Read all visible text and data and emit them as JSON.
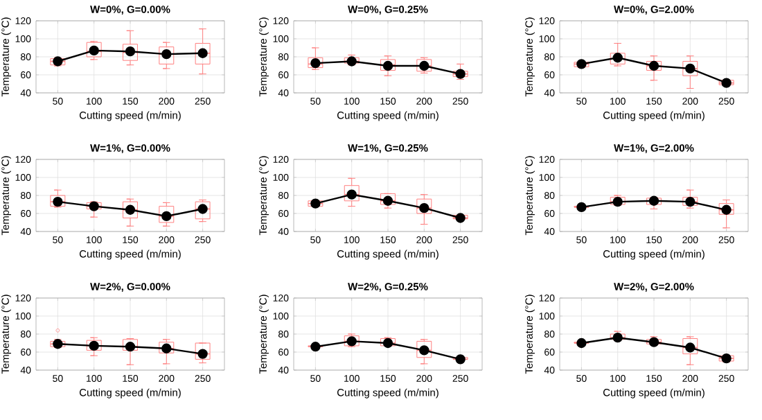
{
  "chart_data": [
    {
      "type": "box",
      "title": "W=0%, G=0.00%",
      "xlabel": "Cutting speed (m/min)",
      "ylabel": "Temperature (°C)",
      "categories": [
        "50",
        "100",
        "150",
        "200",
        "250"
      ],
      "ylim": [
        40,
        120
      ],
      "yticks": [
        40,
        60,
        80,
        100,
        120
      ],
      "grid": true,
      "series": [
        {
          "type": "box",
          "color": "#ff8080",
          "boxes": [
            {
              "low": 70,
              "q1": 71,
              "median": 75,
              "q3": 78,
              "high": 79
            },
            {
              "low": 77,
              "q1": 80,
              "median": 86,
              "q3": 96,
              "high": 97
            },
            {
              "low": 71,
              "q1": 76,
              "median": 85,
              "q3": 94,
              "high": 109
            },
            {
              "low": 67,
              "q1": 72,
              "median": 83,
              "q3": 91,
              "high": 96
            },
            {
              "low": 61,
              "q1": 72,
              "median": 84,
              "q3": 95,
              "high": 111
            }
          ]
        },
        {
          "type": "line",
          "color": "#000000",
          "marker": "circle",
          "values": [
            75,
            87,
            86,
            83,
            84
          ]
        }
      ]
    },
    {
      "type": "box",
      "title": "W=0%, G=0.25%",
      "xlabel": "Cutting speed (m/min)",
      "ylabel": "Temperature (°C)",
      "categories": [
        "50",
        "100",
        "150",
        "200",
        "250"
      ],
      "ylim": [
        40,
        120
      ],
      "yticks": [
        40,
        60,
        80,
        100,
        120
      ],
      "grid": true,
      "series": [
        {
          "type": "box",
          "color": "#ff8080",
          "boxes": [
            {
              "low": 66,
              "q1": 68,
              "median": 72,
              "q3": 79,
              "high": 90
            },
            {
              "low": 71,
              "q1": 73,
              "median": 75,
              "q3": 79,
              "high": 82
            },
            {
              "low": 59,
              "q1": 65,
              "median": 71,
              "q3": 77,
              "high": 81
            },
            {
              "low": 62,
              "q1": 64,
              "median": 70,
              "q3": 77,
              "high": 79
            },
            {
              "low": 55,
              "q1": 58,
              "median": 61,
              "q3": 64,
              "high": 72
            }
          ]
        },
        {
          "type": "line",
          "color": "#000000",
          "marker": "circle",
          "values": [
            73,
            75,
            70,
            70,
            61
          ]
        }
      ]
    },
    {
      "type": "box",
      "title": "W=0%, G=2.00%",
      "xlabel": "Cutting speed (m/min)",
      "ylabel": "Temperature (°C)",
      "categories": [
        "50",
        "100",
        "150",
        "200",
        "250"
      ],
      "ylim": [
        40,
        120
      ],
      "yticks": [
        40,
        60,
        80,
        100,
        120
      ],
      "grid": true,
      "series": [
        {
          "type": "box",
          "color": "#ff8080",
          "boxes": [
            {
              "low": 68,
              "q1": 69,
              "median": 72,
              "q3": 74,
              "high": 74
            },
            {
              "low": 70,
              "q1": 72,
              "median": 78,
              "q3": 84,
              "high": 95
            },
            {
              "low": 54,
              "q1": 65,
              "median": 70,
              "q3": 75,
              "high": 81
            },
            {
              "low": 45,
              "q1": 59,
              "median": 67,
              "q3": 75,
              "high": 81
            },
            {
              "low": 48,
              "q1": 49,
              "median": 51,
              "q3": 54,
              "high": 54
            }
          ]
        },
        {
          "type": "line",
          "color": "#000000",
          "marker": "circle",
          "values": [
            72,
            79,
            70,
            67,
            51
          ]
        }
      ]
    },
    {
      "type": "box",
      "title": "W=1%, G=0.00%",
      "xlabel": "Cutting speed (m/min)",
      "ylabel": "Temperature (°C)",
      "categories": [
        "50",
        "100",
        "150",
        "200",
        "250"
      ],
      "ylim": [
        40,
        120
      ],
      "yticks": [
        40,
        60,
        80,
        100,
        120
      ],
      "grid": true,
      "series": [
        {
          "type": "box",
          "color": "#ff8080",
          "boxes": [
            {
              "low": 67,
              "q1": 68,
              "median": 73,
              "q3": 80,
              "high": 86
            },
            {
              "low": 56,
              "q1": 65,
              "median": 68,
              "q3": 72,
              "high": 73
            },
            {
              "low": 46,
              "q1": 55,
              "median": 64,
              "q3": 73,
              "high": 76
            },
            {
              "low": 46,
              "q1": 50,
              "median": 57,
              "q3": 68,
              "high": 72
            },
            {
              "low": 51,
              "q1": 54,
              "median": 65,
              "q3": 73,
              "high": 75
            }
          ]
        },
        {
          "type": "line",
          "color": "#000000",
          "marker": "circle",
          "values": [
            73,
            68,
            64,
            57,
            65
          ]
        }
      ]
    },
    {
      "type": "box",
      "title": "W=1%, G=0.25%",
      "xlabel": "Cutting speed (m/min)",
      "ylabel": "Temperature (°C)",
      "categories": [
        "50",
        "100",
        "150",
        "200",
        "250"
      ],
      "ylim": [
        40,
        120
      ],
      "yticks": [
        40,
        60,
        80,
        100,
        120
      ],
      "grid": true,
      "series": [
        {
          "type": "box",
          "color": "#ff8080",
          "boxes": [
            {
              "low": 68,
              "q1": 68,
              "median": 71,
              "q3": 74,
              "high": 74
            },
            {
              "low": 68,
              "q1": 74,
              "median": 81,
              "q3": 91,
              "high": 99
            },
            {
              "low": 66,
              "q1": 70,
              "median": 74,
              "q3": 82,
              "high": 82
            },
            {
              "low": 48,
              "q1": 60,
              "median": 66,
              "q3": 76,
              "high": 81
            },
            {
              "low": 53,
              "q1": 54,
              "median": 55,
              "q3": 58,
              "high": 58
            }
          ]
        },
        {
          "type": "line",
          "color": "#000000",
          "marker": "circle",
          "values": [
            71,
            81,
            74,
            66,
            55
          ]
        }
      ]
    },
    {
      "type": "box",
      "title": "W=1%, G=2.00%",
      "xlabel": "Cutting speed (m/min)",
      "ylabel": "Temperature (°C)",
      "categories": [
        "50",
        "100",
        "150",
        "200",
        "250"
      ],
      "ylim": [
        40,
        120
      ],
      "yticks": [
        40,
        60,
        80,
        100,
        120
      ],
      "grid": true,
      "series": [
        {
          "type": "box",
          "color": "#ff8080",
          "boxes": [
            {
              "low": 66,
              "q1": 67,
              "median": 67,
              "q3": 68,
              "high": 68
            },
            {
              "low": 69,
              "q1": 70,
              "median": 73,
              "q3": 78,
              "high": 80
            },
            {
              "low": 65,
              "q1": 70,
              "median": 74,
              "q3": 77,
              "high": 78
            },
            {
              "low": 66,
              "q1": 69,
              "median": 73,
              "q3": 78,
              "high": 86
            },
            {
              "low": 44,
              "q1": 59,
              "median": 64,
              "q3": 71,
              "high": 75
            }
          ]
        },
        {
          "type": "line",
          "color": "#000000",
          "marker": "circle",
          "values": [
            67,
            73,
            74,
            73,
            64
          ]
        }
      ]
    },
    {
      "type": "box",
      "title": "W=2%, G=0.00%",
      "xlabel": "Cutting speed (m/min)",
      "ylabel": "Temperature (°C)",
      "categories": [
        "50",
        "100",
        "150",
        "200",
        "250"
      ],
      "ylim": [
        40,
        120
      ],
      "yticks": [
        40,
        60,
        80,
        100,
        120
      ],
      "grid": true,
      "series": [
        {
          "type": "box",
          "color": "#ff8080",
          "boxes": [
            {
              "low": 65,
              "q1": 66,
              "median": 69,
              "q3": 72,
              "high": 74,
              "outliers": [
                84
              ]
            },
            {
              "low": 56,
              "q1": 62,
              "median": 67,
              "q3": 73,
              "high": 76
            },
            {
              "low": 46,
              "q1": 62,
              "median": 66,
              "q3": 74,
              "high": 75
            },
            {
              "low": 47,
              "q1": 59,
              "median": 64,
              "q3": 71,
              "high": 74
            },
            {
              "low": 48,
              "q1": 52,
              "median": 58,
              "q3": 70,
              "high": 70
            }
          ]
        },
        {
          "type": "line",
          "color": "#000000",
          "marker": "circle",
          "values": [
            69,
            67,
            66,
            64,
            58
          ]
        }
      ]
    },
    {
      "type": "box",
      "title": "W=2%, G=0.25%",
      "xlabel": "Cutting speed (m/min)",
      "ylabel": "Temperature (°C)",
      "categories": [
        "50",
        "100",
        "150",
        "200",
        "250"
      ],
      "ylim": [
        40,
        120
      ],
      "yticks": [
        40,
        60,
        80,
        100,
        120
      ],
      "grid": true,
      "series": [
        {
          "type": "box",
          "color": "#ff8080",
          "boxes": [
            {
              "low": 65,
              "q1": 66,
              "median": 66,
              "q3": 67,
              "high": 67
            },
            {
              "low": 66,
              "q1": 67,
              "median": 72,
              "q3": 78,
              "high": 80
            },
            {
              "low": 67,
              "q1": 67,
              "median": 70,
              "q3": 75,
              "high": 76
            },
            {
              "low": 47,
              "q1": 54,
              "median": 62,
              "q3": 72,
              "high": 74
            },
            {
              "low": 51,
              "q1": 52,
              "median": 52,
              "q3": 54,
              "high": 54
            }
          ]
        },
        {
          "type": "line",
          "color": "#000000",
          "marker": "circle",
          "values": [
            66,
            72,
            70,
            62,
            52
          ]
        }
      ]
    },
    {
      "type": "box",
      "title": "W=2%, G=2.00%",
      "xlabel": "Cutting speed (m/min)",
      "ylabel": "Temperature (°C)",
      "categories": [
        "50",
        "100",
        "150",
        "200",
        "250"
      ],
      "ylim": [
        40,
        120
      ],
      "yticks": [
        40,
        60,
        80,
        100,
        120
      ],
      "grid": true,
      "series": [
        {
          "type": "box",
          "color": "#ff8080",
          "boxes": [
            {
              "low": 70,
              "q1": 70,
              "median": 70,
              "q3": 71,
              "high": 71
            },
            {
              "low": 73,
              "q1": 74,
              "median": 76,
              "q3": 80,
              "high": 83
            },
            {
              "low": 68,
              "q1": 69,
              "median": 71,
              "q3": 74,
              "high": 77
            },
            {
              "low": 46,
              "q1": 58,
              "median": 65,
              "q3": 75,
              "high": 77
            },
            {
              "low": 49,
              "q1": 50,
              "median": 53,
              "q3": 56,
              "high": 56
            }
          ]
        },
        {
          "type": "line",
          "color": "#000000",
          "marker": "circle",
          "values": [
            70,
            76,
            71,
            65,
            53
          ]
        }
      ]
    }
  ]
}
